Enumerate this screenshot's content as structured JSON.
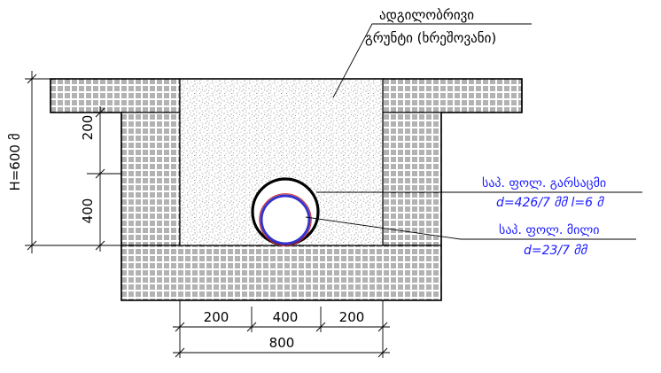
{
  "labels": {
    "native_soil_line1": "ადგილობრივი",
    "native_soil_line2": "გრუნტი (ხრეშოვანი)",
    "casing_title": "საპ. ფოლ. გარსაცმი",
    "casing_spec": "d=426/7 მმ  l=6  მ",
    "pipe_title": "საპ. ფოლ. მილი",
    "pipe_spec": "d=23/7 მმ"
  },
  "dimensions": {
    "total_height": "H=600 მ",
    "upper_depth": "200",
    "lower_depth": "400",
    "bottom_left": "200",
    "bottom_middle": "400",
    "bottom_right": "200",
    "total_width": "800"
  },
  "colors": {
    "line": "#000000",
    "leader_blue": "#1a1aff",
    "pipe_blue": "#3333cc",
    "pipe_red": "#cc2222"
  }
}
